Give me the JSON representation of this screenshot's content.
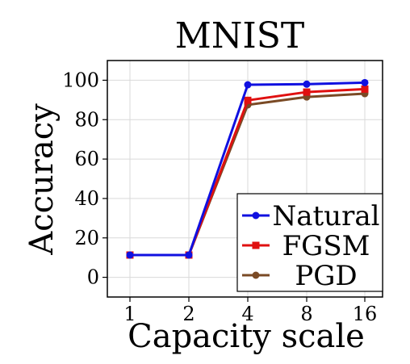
{
  "chart_data": {
    "type": "line",
    "title": "MNIST",
    "xlabel": "Capacity scale",
    "ylabel": "Accuracy",
    "categories": [
      "1",
      "2",
      "4",
      "8",
      "16"
    ],
    "ylim": [
      -10,
      110
    ],
    "yticks": [
      0,
      20,
      40,
      60,
      80,
      100
    ],
    "grid": true,
    "legend_position": "bottom-right",
    "series": [
      {
        "name": "Natural",
        "color": "#1010e0",
        "marker": "circle",
        "values": [
          11.3,
          11.3,
          97.7,
          98.0,
          98.8
        ]
      },
      {
        "name": "FGSM",
        "color": "#e01010",
        "marker": "square",
        "values": [
          11.3,
          11.3,
          89.8,
          94.0,
          95.5
        ]
      },
      {
        "name": "PGD",
        "color": "#7a4a25",
        "marker": "circle",
        "values": [
          11.3,
          11.3,
          87.5,
          91.5,
          93.2
        ]
      }
    ]
  }
}
